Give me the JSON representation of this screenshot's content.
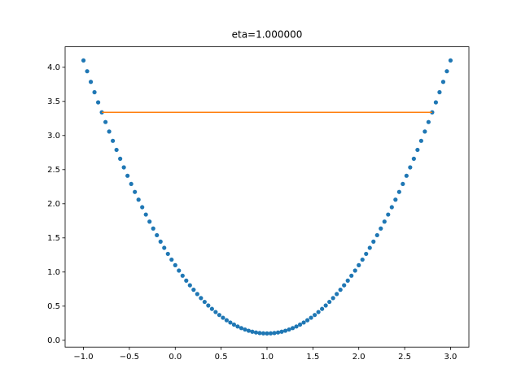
{
  "chart_data": {
    "type": "scatter",
    "title": "eta=1.000000",
    "xlim": [
      -1.2,
      3.2
    ],
    "ylim": [
      -0.1,
      4.3
    ],
    "xticks": [
      {
        "value": -1,
        "label": "−1.0"
      },
      {
        "value": -0.5,
        "label": "−0.5"
      },
      {
        "value": 0,
        "label": "0.0"
      },
      0.5,
      {
        "value": 1,
        "label": "1.0"
      },
      1.5,
      {
        "value": 2,
        "label": "2.0"
      },
      2.5,
      {
        "value": 3,
        "label": "3.0"
      }
    ],
    "yticks": [
      {
        "value": 0,
        "label": "0.0"
      },
      0.5,
      {
        "value": 1,
        "label": "1.0"
      },
      1.5,
      {
        "value": 2,
        "label": "2.0"
      },
      2.5,
      {
        "value": 3,
        "label": "3.0"
      },
      3.5,
      {
        "value": 4,
        "label": "4.0"
      }
    ],
    "grid": false,
    "series": [
      {
        "type": "scatter",
        "color": "#1f77b4",
        "x": [
          -1,
          -0.96,
          -0.92,
          -0.88,
          -0.84,
          -0.8,
          -0.76,
          -0.72,
          -0.68,
          -0.64,
          -0.6,
          -0.56,
          -0.52,
          -0.48,
          -0.44,
          -0.4,
          -0.36,
          -0.32,
          -0.28,
          -0.24,
          -0.2,
          -0.16,
          -0.12,
          -0.08,
          -0.04,
          0,
          0.04,
          0.08,
          0.12,
          0.16,
          0.2,
          0.24,
          0.28,
          0.32,
          0.36,
          0.4,
          0.44,
          0.48,
          0.52,
          0.56,
          0.6,
          0.64,
          0.68,
          0.72,
          0.76,
          0.8,
          0.84,
          0.88,
          0.92,
          0.96,
          1,
          1.04,
          1.08,
          1.12,
          1.16,
          1.2,
          1.24,
          1.28,
          1.32,
          1.36,
          1.4,
          1.44,
          1.48,
          1.52,
          1.56,
          1.6,
          1.64,
          1.68,
          1.72,
          1.76,
          1.8,
          1.84,
          1.88,
          1.92,
          1.96,
          2,
          2.04,
          2.08,
          2.12,
          2.16,
          2.2,
          2.24,
          2.28,
          2.32,
          2.36,
          2.4,
          2.44,
          2.48,
          2.52,
          2.56,
          2.6,
          2.64,
          2.68,
          2.72,
          2.76,
          2.8,
          2.84,
          2.88,
          2.92,
          2.96,
          3
        ],
        "values": [
          4.1,
          3.9416,
          3.7864,
          3.6344,
          3.4856,
          3.34,
          3.1976,
          3.0584,
          2.9224,
          2.7896,
          2.66,
          2.5336,
          2.4104,
          2.2904,
          2.1736,
          2.06,
          1.9496,
          1.8424,
          1.7384,
          1.6376,
          1.54,
          1.4456,
          1.3544,
          1.2664,
          1.1816,
          1.1,
          1.0216,
          0.9464,
          0.8744,
          0.8056,
          0.74,
          0.6776,
          0.6184,
          0.5624,
          0.5096,
          0.46,
          0.4136,
          0.3704,
          0.3304,
          0.2936,
          0.26,
          0.2296,
          0.2024,
          0.1784,
          0.1576,
          0.14,
          0.1256,
          0.1144,
          0.1064,
          0.1016,
          0.1,
          0.1016,
          0.1064,
          0.1144,
          0.1256,
          0.14,
          0.1576,
          0.1784,
          0.2024,
          0.2296,
          0.26,
          0.2936,
          0.3304,
          0.3704,
          0.4136,
          0.46,
          0.5096,
          0.5624,
          0.6184,
          0.6776,
          0.74,
          0.8056,
          0.8744,
          0.9464,
          1.0216,
          1.1,
          1.1816,
          1.2664,
          1.3544,
          1.4456,
          1.54,
          1.6376,
          1.7384,
          1.8424,
          1.9496,
          2.06,
          2.1736,
          2.2904,
          2.4104,
          2.5336,
          2.66,
          2.7896,
          2.9224,
          3.0584,
          3.1976,
          3.34,
          3.4856,
          3.6344,
          3.7864,
          3.9416,
          4.1
        ]
      },
      {
        "type": "line",
        "color": "#ff7f0e",
        "x": [
          2.8,
          -0.8
        ],
        "values": [
          3.34,
          3.34
        ]
      }
    ]
  }
}
